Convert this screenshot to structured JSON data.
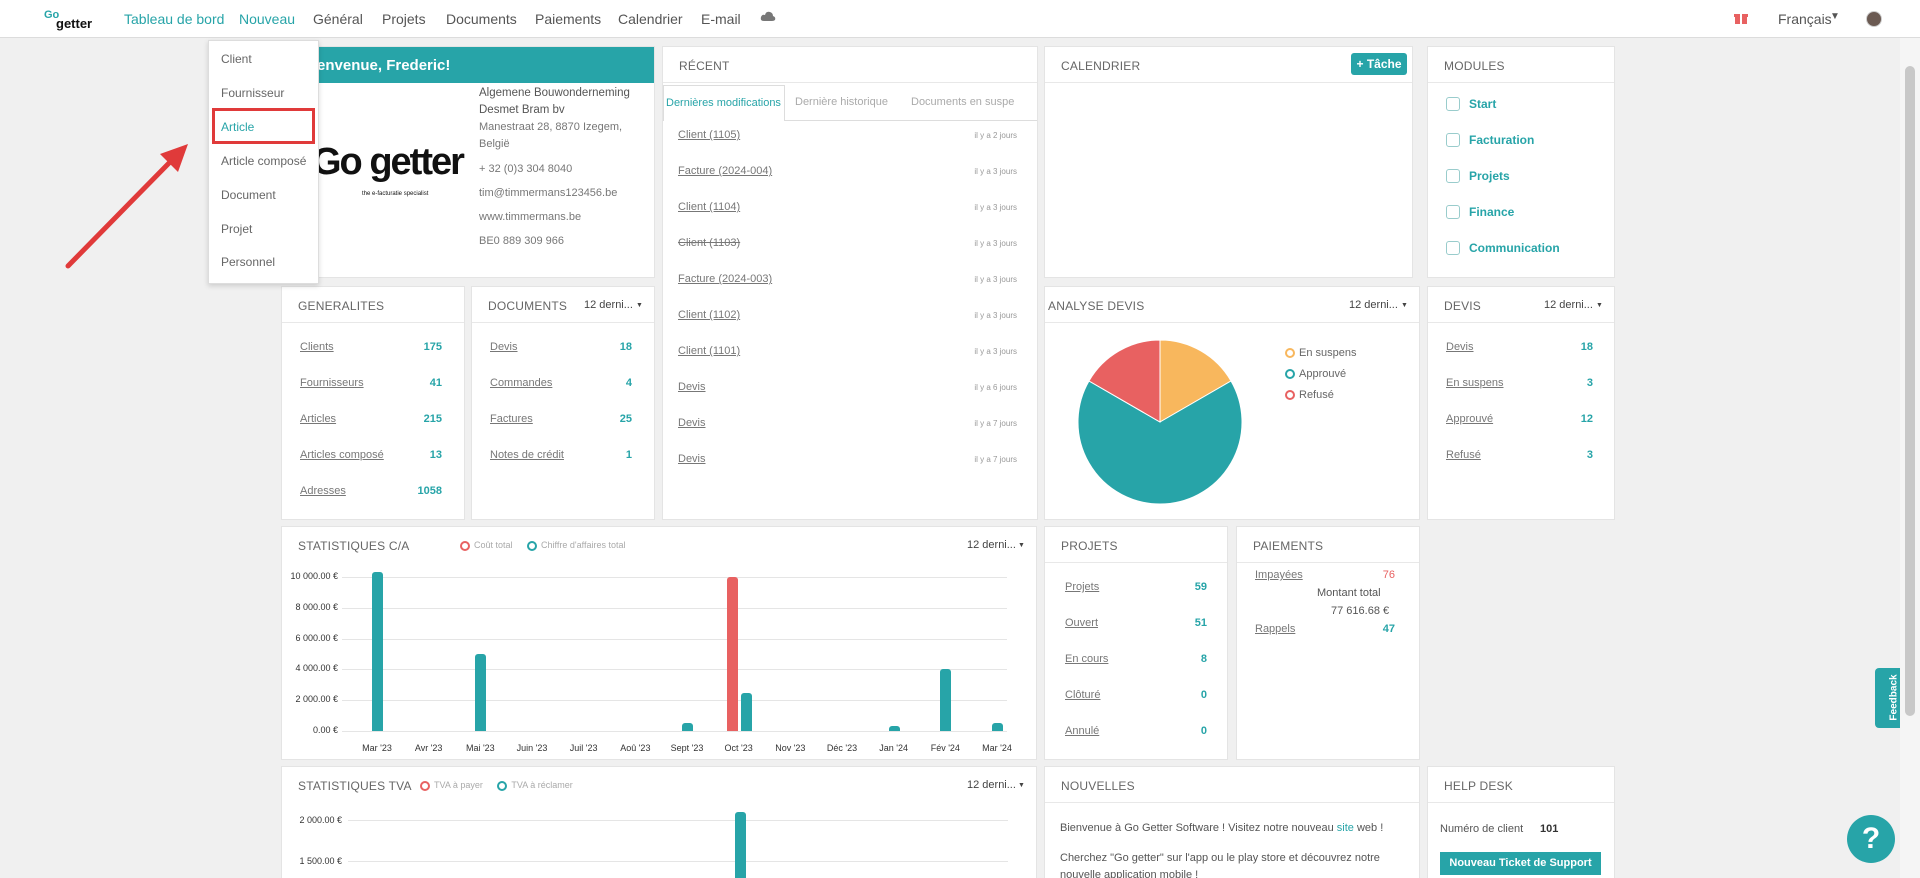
{
  "nav": {
    "items": [
      "Tableau de bord",
      "Nouveau",
      "Général",
      "Projets",
      "Documents",
      "Paiements",
      "Calendrier",
      "E-mail"
    ],
    "language": "Français"
  },
  "menu": {
    "items": [
      "Client",
      "Fournisseur",
      "Article",
      "Article composé",
      "Document",
      "Projet",
      "Personnel"
    ]
  },
  "welcome": {
    "title": "Bienvenue, Frederic!",
    "company": "Algemene Bouwonderneming Desmet Bram bv",
    "address": "Manestraat 28, 8870 Izegem, België",
    "phone": "+ 32 (0)3 304 8040",
    "email": "tim@timmermans123456.be",
    "website": "www.timmermans.be",
    "vat": "BE0 889 309 966",
    "logo_text": "Go getter",
    "logo_tag": "the e-facturatie specialist"
  },
  "recent": {
    "title": "RÉCENT",
    "tabs": [
      "Dernières modifications",
      "Dernière historique",
      "Documents en suspe"
    ],
    "items": [
      {
        "label": "Client (1105)",
        "time": "il y a 2 jours"
      },
      {
        "label": "Facture (2024-004)",
        "time": "il y a 3 jours"
      },
      {
        "label": "Client (1104)",
        "time": "il y a 3 jours"
      },
      {
        "label": "Client (1103)",
        "time": "il y a 3 jours"
      },
      {
        "label": "Facture (2024-003)",
        "time": "il y a 3 jours"
      },
      {
        "label": "Client (1102)",
        "time": "il y a 3 jours"
      },
      {
        "label": "Client (1101)",
        "time": "il y a 3 jours"
      },
      {
        "label": "Devis",
        "time": "il y a 6 jours"
      },
      {
        "label": "Devis",
        "time": "il y a 7 jours"
      },
      {
        "label": "Devis",
        "time": "il y a 7 jours"
      }
    ]
  },
  "calendar": {
    "title": "CALENDRIER",
    "add_task": "+ Tâche"
  },
  "modules": {
    "title": "MODULES",
    "items": [
      "Start",
      "Facturation",
      "Projets",
      "Finance",
      "Communication"
    ]
  },
  "generalites": {
    "title": "GENERALITES",
    "rows": [
      {
        "label": "Clients",
        "value": "175"
      },
      {
        "label": "Fournisseurs",
        "value": "41"
      },
      {
        "label": "Articles",
        "value": "215"
      },
      {
        "label": "Articles composé",
        "value": "13"
      },
      {
        "label": "Adresses",
        "value": "1058"
      }
    ]
  },
  "documents": {
    "title": "DOCUMENTS",
    "period": "12 derni...",
    "rows": [
      {
        "label": "Devis",
        "value": "18"
      },
      {
        "label": "Commandes",
        "value": "4"
      },
      {
        "label": "Factures",
        "value": "25"
      },
      {
        "label": "Notes de crédit",
        "value": "1"
      }
    ]
  },
  "analyse": {
    "title": "ANALYSE DEVIS",
    "period": "12 derni...",
    "legend": [
      "En suspens",
      "Approuvé",
      "Refusé"
    ]
  },
  "devis": {
    "title": "DEVIS",
    "period": "12 derni...",
    "rows": [
      {
        "label": "Devis",
        "value": "18"
      },
      {
        "label": "En suspens",
        "value": "3"
      },
      {
        "label": "Approuvé",
        "value": "12"
      },
      {
        "label": "Refusé",
        "value": "3"
      }
    ]
  },
  "stats_ca": {
    "title": "STATISTIQUES C/A",
    "period": "12 derni...",
    "legend": [
      "Coût total",
      "Chiffre d'affaires total"
    ]
  },
  "projets": {
    "title": "PROJETS",
    "rows": [
      {
        "label": "Projets",
        "value": "59"
      },
      {
        "label": "Ouvert",
        "value": "51"
      },
      {
        "label": "En cours",
        "value": "8"
      },
      {
        "label": "Clôturé",
        "value": "0"
      },
      {
        "label": "Annulé",
        "value": "0"
      }
    ]
  },
  "paiements": {
    "title": "PAIEMENTS",
    "unpaid_label": "Impayées",
    "unpaid_value": "76",
    "total_label": "Montant total",
    "total_value": "77 616.68 €",
    "rappels_label": "Rappels",
    "rappels_value": "47"
  },
  "stats_tva": {
    "title": "STATISTIQUES TVA",
    "period": "12 derni...",
    "legend": [
      "TVA à payer",
      "TVA à réclamer"
    ]
  },
  "nouvelles": {
    "title": "NOUVELLES",
    "p1a": "Bienvenue à Go Getter Software ! Visitez notre nouveau ",
    "p1link": "site",
    "p1b": " web !",
    "p2": "Cherchez \"Go getter\" sur l'app ou le play store et découvrez notre nouvelle application mobile !"
  },
  "helpdesk": {
    "title": "HELP DESK",
    "client_label": "Numéro de client",
    "client_no": "101",
    "button": "Nouveau Ticket de Support"
  },
  "feedback": "Feedback",
  "help_symbol": "?",
  "colors": {
    "accent": "#27a4a8",
    "red": "#e86161",
    "orange": "#f8b75d",
    "highlight": "#e03a3a"
  },
  "chart_data": [
    {
      "type": "bar",
      "title": "STATISTIQUES C/A",
      "categories": [
        "Mar '23",
        "Avr '23",
        "Mai '23",
        "Juin '23",
        "Juil '23",
        "Aoû '23",
        "Sept '23",
        "Oct '23",
        "Nov '23",
        "Déc '23",
        "Jan '24",
        "Fév '24",
        "Mar '24"
      ],
      "series": [
        {
          "name": "Coût total",
          "values": [
            0,
            0,
            0,
            0,
            0,
            0,
            0,
            10000,
            0,
            0,
            0,
            0,
            0
          ]
        },
        {
          "name": "Chiffre d'affaires total",
          "values": [
            10300,
            0,
            5000,
            0,
            0,
            0,
            500,
            2500,
            0,
            0,
            300,
            4000,
            500
          ]
        }
      ],
      "yticks": [
        "10 000.00 €",
        "8 000.00 €",
        "6 000.00 €",
        "4 000.00 €",
        "2 000.00 €",
        "0.00 €"
      ],
      "ylim": [
        0,
        10000
      ]
    },
    {
      "type": "pie",
      "title": "ANALYSE DEVIS",
      "labels": [
        "En suspens",
        "Approuvé",
        "Refusé"
      ],
      "values": [
        3,
        12,
        3
      ]
    },
    {
      "type": "bar",
      "title": "STATISTIQUES TVA",
      "series": [
        {
          "name": "TVA à payer",
          "values": []
        },
        {
          "name": "TVA à réclamer",
          "values": []
        }
      ],
      "yticks": [
        "2 000.00 €",
        "1 500.00 €"
      ]
    }
  ]
}
